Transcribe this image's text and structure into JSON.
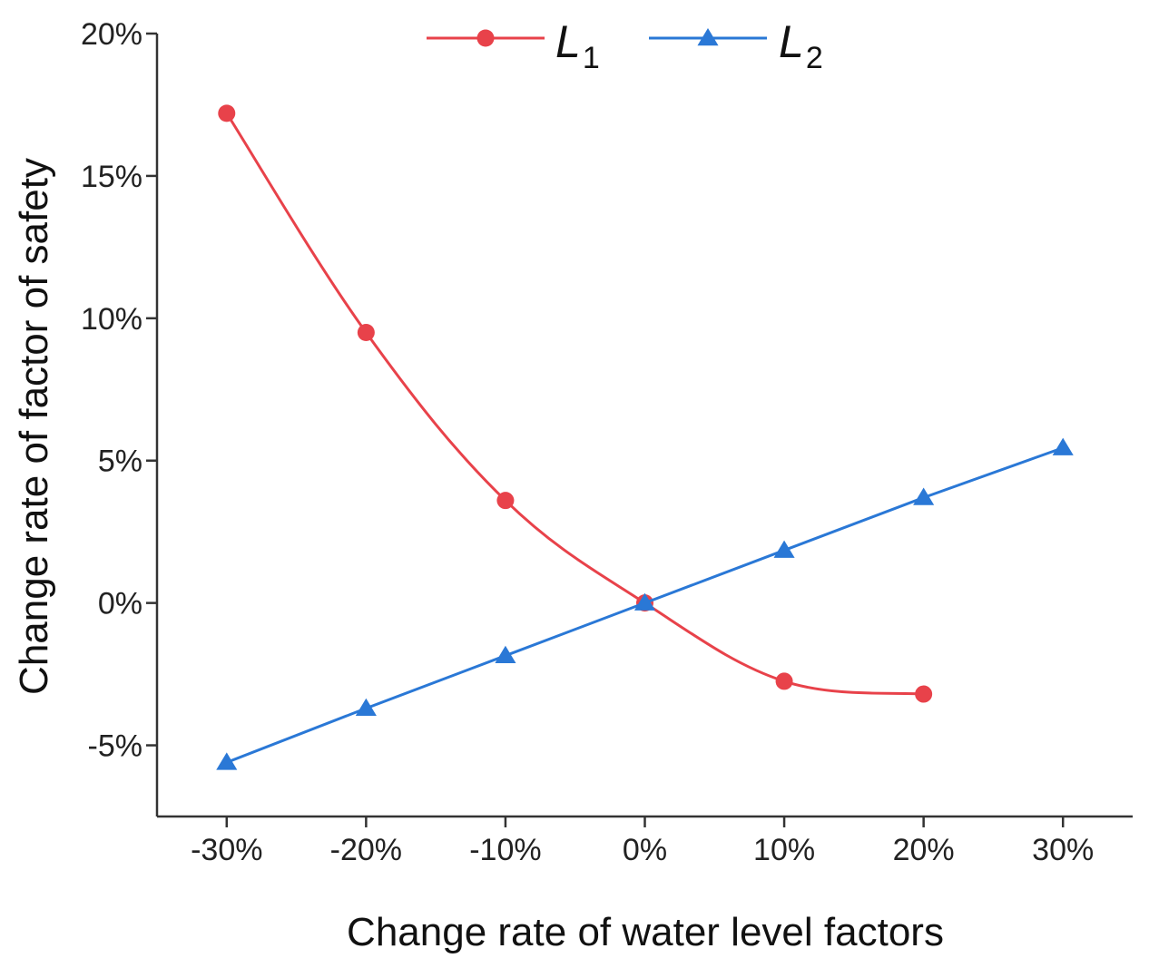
{
  "chart_data": {
    "type": "line",
    "title": "",
    "xlabel": "Change rate of water level factors",
    "ylabel": "Change rate of factor of safety",
    "x": [
      -30,
      -20,
      -10,
      0,
      10,
      20,
      30
    ],
    "xticks": [
      "-30%",
      "-20%",
      "-10%",
      "0%",
      "10%",
      "20%",
      "30%"
    ],
    "xlim": [
      -35,
      35
    ],
    "ylim": [
      -7.5,
      20
    ],
    "yticks_values": [
      -5,
      0,
      5,
      10,
      15,
      20
    ],
    "yticks": [
      "-5%",
      "0%",
      "5%",
      "10%",
      "15%",
      "20%"
    ],
    "grid": false,
    "legend_position": "top-center",
    "series": [
      {
        "name": "L1",
        "name_main": "L",
        "name_sub": "1",
        "color": "#e8424a",
        "marker": "circle",
        "x": [
          -30,
          -20,
          -10,
          0,
          10,
          20
        ],
        "values": [
          17.2,
          9.5,
          3.6,
          0.0,
          -2.75,
          -3.2
        ]
      },
      {
        "name": "L2",
        "name_main": "L",
        "name_sub": "2",
        "color": "#2a78d6",
        "marker": "triangle",
        "x": [
          -30,
          -20,
          -10,
          0,
          10,
          20,
          30
        ],
        "values": [
          -5.6,
          -3.7,
          -1.85,
          0.0,
          1.85,
          3.7,
          5.45
        ]
      }
    ]
  }
}
